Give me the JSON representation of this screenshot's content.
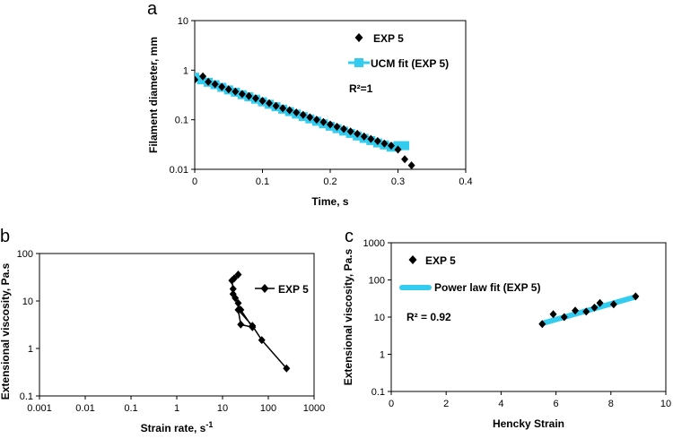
{
  "chart_data": [
    {
      "type": "scatter",
      "panel_label": "a",
      "xscale": "linear",
      "yscale": "log",
      "xlim": [
        0,
        0.4
      ],
      "ylim": [
        0.01,
        10
      ],
      "xticks": [
        "0",
        "0.1",
        "0.2",
        "0.3",
        "0.4"
      ],
      "yticks": [
        "0.01",
        "0.1",
        "1",
        "10"
      ],
      "xlabel": "Time, s",
      "ylabel": "Filament diameter, mm",
      "annotation": "R²=1",
      "legend": [
        "EXP 5",
        "UCM fit (EXP 5)"
      ],
      "series": [
        {
          "name": "EXP 5",
          "marker": "diamond",
          "color": "#000000",
          "x": [
            0.0,
            0.012,
            0.02,
            0.03,
            0.04,
            0.05,
            0.06,
            0.07,
            0.08,
            0.09,
            0.1,
            0.11,
            0.12,
            0.13,
            0.14,
            0.15,
            0.16,
            0.17,
            0.18,
            0.19,
            0.2,
            0.21,
            0.22,
            0.23,
            0.24,
            0.25,
            0.26,
            0.27,
            0.28,
            0.29,
            0.3,
            0.31,
            0.32
          ],
          "y": [
            0.64,
            0.75,
            0.58,
            0.52,
            0.46,
            0.41,
            0.37,
            0.33,
            0.3,
            0.27,
            0.24,
            0.215,
            0.19,
            0.17,
            0.155,
            0.14,
            0.125,
            0.112,
            0.1,
            0.09,
            0.08,
            0.072,
            0.065,
            0.058,
            0.052,
            0.046,
            0.041,
            0.037,
            0.033,
            0.03,
            0.025,
            0.016,
            0.012
          ]
        },
        {
          "name": "UCM fit (EXP 5)",
          "marker": "square",
          "color": "#33CCEE",
          "x": [
            0.0,
            0.01,
            0.02,
            0.03,
            0.04,
            0.05,
            0.06,
            0.07,
            0.08,
            0.09,
            0.1,
            0.11,
            0.12,
            0.13,
            0.14,
            0.15,
            0.16,
            0.17,
            0.18,
            0.19,
            0.2,
            0.21,
            0.22,
            0.23,
            0.24,
            0.25,
            0.26,
            0.27,
            0.28,
            0.29,
            0.3,
            0.31
          ],
          "y": [
            0.72,
            0.64,
            0.57,
            0.51,
            0.45,
            0.4,
            0.36,
            0.32,
            0.29,
            0.26,
            0.23,
            0.205,
            0.183,
            0.163,
            0.146,
            0.13,
            0.116,
            0.104,
            0.093,
            0.083,
            0.074,
            0.066,
            0.059,
            0.053,
            0.047,
            0.042,
            0.038,
            0.034,
            0.031,
            0.028,
            0.03,
            0.03
          ]
        }
      ]
    },
    {
      "type": "line",
      "panel_label": "b",
      "xscale": "log",
      "yscale": "log",
      "xlim": [
        0.001,
        1000
      ],
      "ylim": [
        0.1,
        100
      ],
      "xticks": [
        "0.001",
        "0.01",
        "0.1",
        "1",
        "10",
        "100",
        "1000"
      ],
      "yticks": [
        "0.1",
        "1",
        "10",
        "100"
      ],
      "xlabel": "Strain rate, s",
      "xlabel_superscript": "-1",
      "ylabel": "Extensional viscosity, Pa.s",
      "legend": [
        "EXP 5"
      ],
      "series": [
        {
          "name": "EXP 5",
          "marker": "diamond",
          "color": "#000000",
          "x": [
            250,
            72,
            45,
            22,
            25,
            45,
            25,
            22,
            19,
            17,
            17,
            16,
            18,
            22
          ],
          "y": [
            0.38,
            1.5,
            3.0,
            6.5,
            3.2,
            2.8,
            6.5,
            9.0,
            11.5,
            14,
            18,
            27,
            30,
            36
          ]
        }
      ]
    },
    {
      "type": "scatter",
      "panel_label": "c",
      "xscale": "linear",
      "yscale": "log",
      "xlim": [
        0,
        10
      ],
      "ylim": [
        0.1,
        1000
      ],
      "xticks": [
        "0",
        "2",
        "4",
        "6",
        "8",
        "10"
      ],
      "yticks": [
        "0.1",
        "1",
        "10",
        "100",
        "1000"
      ],
      "xlabel": "Hencky Strain",
      "ylabel": "Extensional viscosity, Pa.s",
      "annotation": "R² = 0.92",
      "legend": [
        "EXP 5",
        "Power law fit (EXP 5)"
      ],
      "series": [
        {
          "name": "EXP 5",
          "marker": "diamond",
          "color": "#000000",
          "x": [
            5.5,
            5.9,
            6.3,
            6.7,
            7.1,
            7.4,
            7.6,
            8.1,
            8.9
          ],
          "y": [
            6.5,
            12,
            10,
            15,
            14,
            18,
            24,
            22,
            36
          ]
        },
        {
          "name": "Power law fit (EXP 5)",
          "marker": "line",
          "color": "#33CCEE",
          "x": [
            5.5,
            8.9
          ],
          "y": [
            6.8,
            35
          ]
        }
      ]
    }
  ]
}
